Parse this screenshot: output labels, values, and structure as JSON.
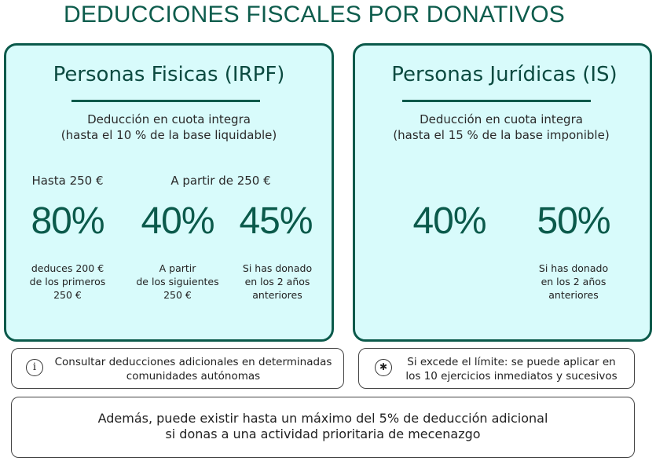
{
  "title": "DEDUCCIONES FISCALES POR DONATIVOS",
  "left": {
    "title": "Personas Fisicas (IRPF)",
    "sub_line1": "Deducción en cuota integra",
    "sub_line2": "(hasta el 10 % de la base liquidable)",
    "head1": "Hasta 250 €",
    "head2": "A partir de 250 €",
    "pct1": "80%",
    "pct2": "40%",
    "pct3": "45%",
    "note1": [
      "deduces 200 €",
      "de los primeros",
      "250 €"
    ],
    "note2": [
      "A partir",
      "de los siguientes",
      "250 €"
    ],
    "note3": [
      "Si has donado",
      "en los 2 años",
      "anteriores"
    ]
  },
  "right": {
    "title": "Personas Jurídicas (IS)",
    "sub_line1": "Deducción en cuota integra",
    "sub_line2": "(hasta el 15 % de la base imponible)",
    "pct1": "40%",
    "pct2": "50%",
    "note2": [
      "Si has donado",
      "en los 2 años",
      "anteriores"
    ]
  },
  "info": {
    "icon": "i",
    "icon_name": "info-icon",
    "line1": "Consultar deducciones adicionales en determinadas",
    "line2": "comunidades autónomas"
  },
  "exceed": {
    "icon": "✱",
    "icon_name": "asterisk-icon",
    "line1": "Si excede el límite: se puede aplicar en",
    "line2": "los 10 ejercicios inmediatos y sucesivos"
  },
  "additional": {
    "line1": "Además, puede existir hasta un máximo del 5% de deducción adicional",
    "line2": "si donas a una actividad prioritaria de mecenazgo"
  },
  "colors": {
    "accent": "#0b5a4b",
    "panel_bg": "#d8fbfb",
    "title": "#0d5c4c"
  }
}
